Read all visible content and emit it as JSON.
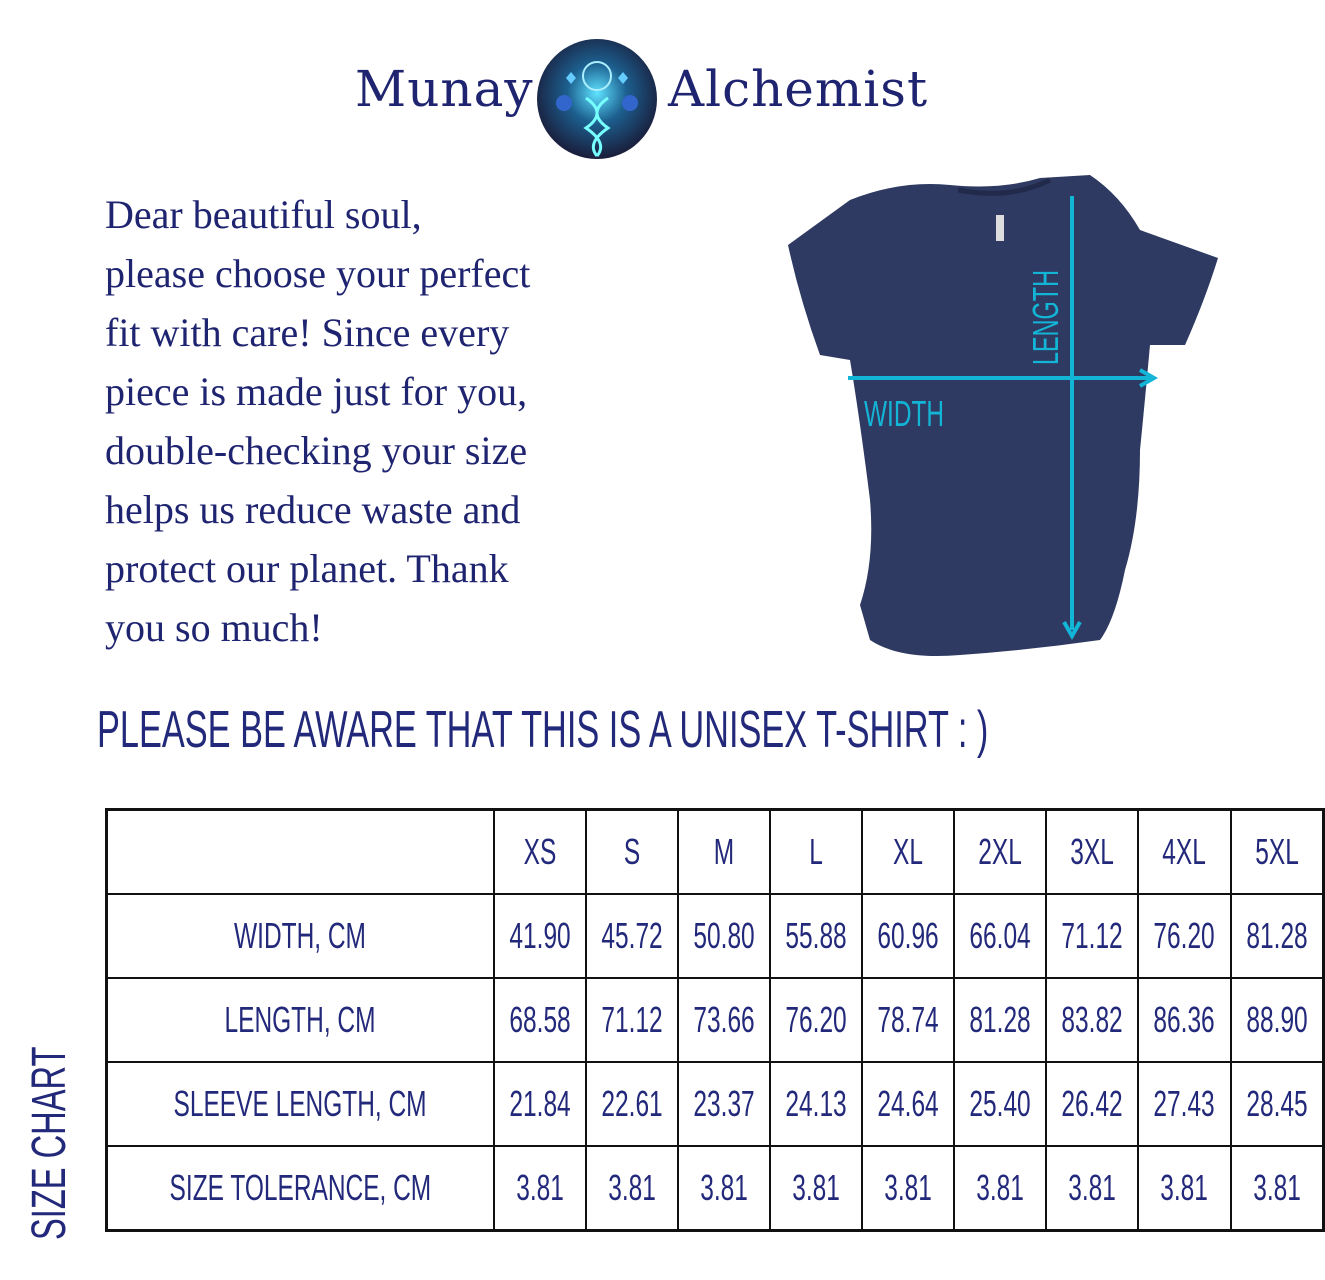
{
  "brand": {
    "left": "Munay",
    "right": "Alchemist"
  },
  "intro": {
    "lines": [
      "Dear beautiful soul,",
      "please choose your perfect",
      "fit with care! Since every",
      "piece is made just for you,",
      "double-checking your size",
      "helps us reduce waste and",
      "protect our planet. Thank",
      "you so much!"
    ]
  },
  "shirt": {
    "color": "#2f3a62",
    "arrow_color": "#13b5d6",
    "length_label": "LENGTH",
    "width_label": "WIDTH"
  },
  "notice": "PLEASE BE AWARE THAT THIS IS A UNISEX T-SHIRT : )",
  "side_label": "SIZE CHART",
  "table": {
    "sizes": [
      "XS",
      "S",
      "M",
      "L",
      "XL",
      "2XL",
      "3XL",
      "4XL",
      "5XL"
    ],
    "rows": [
      {
        "label": "WIDTH, CM",
        "values": [
          "41.90",
          "45.72",
          "50.80",
          "55.88",
          "60.96",
          "66.04",
          "71.12",
          "76.20",
          "81.28"
        ]
      },
      {
        "label": "LENGTH, CM",
        "values": [
          "68.58",
          "71.12",
          "73.66",
          "76.20",
          "78.74",
          "81.28",
          "83.82",
          "86.36",
          "88.90"
        ]
      },
      {
        "label": "SLEEVE LENGTH, CM",
        "values": [
          "21.84",
          "22.61",
          "23.37",
          "24.13",
          "24.64",
          "25.40",
          "26.42",
          "27.43",
          "28.45"
        ]
      },
      {
        "label": "SIZE TOLERANCE, CM",
        "values": [
          "3.81",
          "3.81",
          "3.81",
          "3.81",
          "3.81",
          "3.81",
          "3.81",
          "3.81",
          "3.81"
        ]
      }
    ]
  },
  "colors": {
    "text": "#23297a",
    "border": "#111111"
  }
}
